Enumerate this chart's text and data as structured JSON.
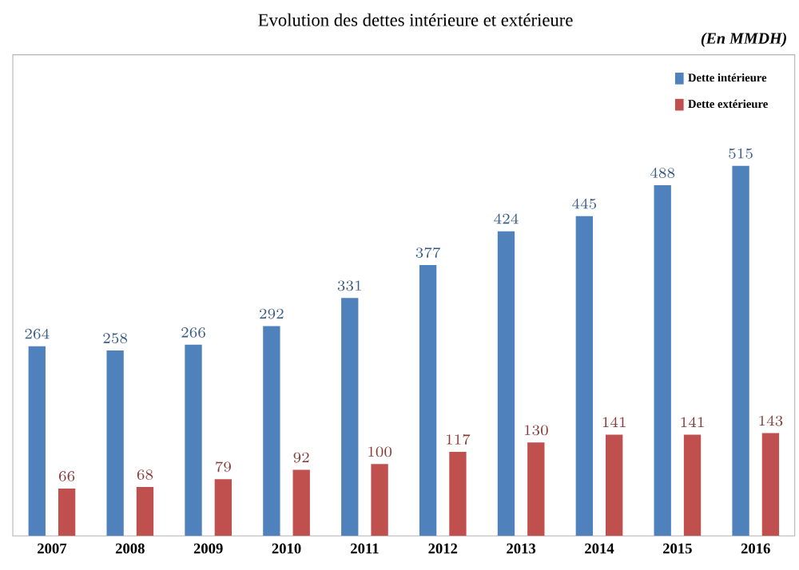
{
  "chart_data": {
    "type": "bar",
    "title": "Evolution des dettes intérieure et extérieure",
    "annotations": [
      "(En MMDH)"
    ],
    "categories": [
      "2007",
      "2008",
      "2009",
      "2010",
      "2011",
      "2012",
      "2013",
      "2014",
      "2015",
      "2016"
    ],
    "series": [
      {
        "name": "Dette intérieure",
        "color": "#4f81bd",
        "values": [
          264,
          258,
          266,
          292,
          331,
          377,
          424,
          445,
          488,
          515
        ]
      },
      {
        "name": "Dette extérieure",
        "color": "#c0504d",
        "values": [
          66,
          68,
          79,
          92,
          100,
          117,
          130,
          141,
          141,
          143
        ]
      }
    ],
    "data_labels": true,
    "legend": "top right",
    "relative": false
  }
}
